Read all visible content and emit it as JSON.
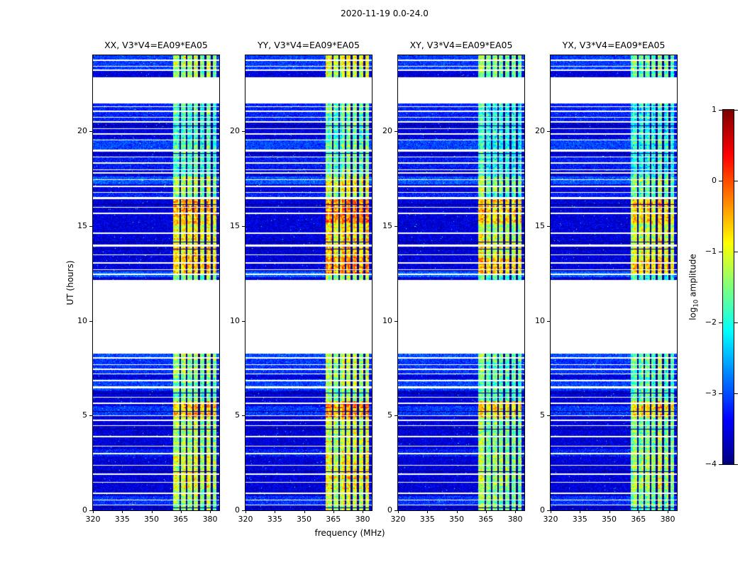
{
  "figure": {
    "title": "2020-11-19 0.0-24.0",
    "xlabel": "frequency (MHz)",
    "ylabel": "UT (hours)"
  },
  "chart_data": {
    "type": "heatmap",
    "title": "2020-11-19 0.0-24.0",
    "xlabel": "frequency (MHz)",
    "ylabel": "UT (hours)",
    "x_range_mhz": [
      320,
      384.7
    ],
    "y_range_hours": [
      0,
      24
    ],
    "x_ticks": [
      320,
      335,
      350,
      365,
      380
    ],
    "y_ticks": [
      0,
      5,
      10,
      15,
      20
    ],
    "panels": [
      {
        "title": "XX, V3*V4=EA09*EA05",
        "seed": 101,
        "level_offset": 0.05
      },
      {
        "title": "YY, V3*V4=EA09*EA05",
        "seed": 202,
        "level_offset": 0.18
      },
      {
        "title": "XY, V3*V4=EA09*EA05",
        "seed": 303,
        "level_offset": -0.15
      },
      {
        "title": "YX, V3*V4=EA09*EA05",
        "seed": 404,
        "level_offset": -0.05
      }
    ],
    "colorbar": {
      "label_prefix": "log",
      "label_sub": "10",
      "label_suffix": " amplitude",
      "ticks": [
        "1",
        "0",
        "−1",
        "−2",
        "−3",
        "−4"
      ],
      "tick_values": [
        1,
        0,
        -1,
        -2,
        -3,
        -4
      ],
      "vmin": -4,
      "vmax": 1,
      "colormap": "jet"
    },
    "features": {
      "background_level": -3.55,
      "band_mhz": [
        361.2,
        383.2
      ],
      "band_level": -1.55,
      "blank_ut": [
        [
          8.25,
          12.15
        ],
        [
          21.45,
          22.85
        ]
      ],
      "flagged_channels_mhz": [
        364.8,
        368.0,
        371.2,
        374.4,
        377.6,
        380.8
      ],
      "white_lines": [
        [
          23.75,
          2
        ],
        [
          23.45,
          1
        ],
        [
          23.22,
          2
        ],
        [
          21.3,
          1
        ],
        [
          21.05,
          2
        ],
        [
          20.75,
          1
        ],
        [
          20.5,
          2
        ],
        [
          20.15,
          1
        ],
        [
          19.85,
          2
        ],
        [
          19.55,
          1
        ],
        [
          19.0,
          3
        ],
        [
          18.65,
          1
        ],
        [
          18.3,
          2
        ],
        [
          18.0,
          1
        ],
        [
          17.78,
          2
        ],
        [
          17.45,
          1
        ],
        [
          17.1,
          2
        ],
        [
          16.78,
          1
        ],
        [
          16.5,
          3
        ],
        [
          16.0,
          1
        ],
        [
          15.68,
          2
        ],
        [
          14.6,
          2
        ],
        [
          14.0,
          3
        ],
        [
          13.5,
          1
        ],
        [
          13.05,
          2
        ],
        [
          12.7,
          1
        ],
        [
          12.45,
          2
        ],
        [
          8.05,
          2
        ],
        [
          7.7,
          1
        ],
        [
          7.45,
          2
        ],
        [
          7.2,
          1
        ],
        [
          6.85,
          2
        ],
        [
          6.5,
          3
        ],
        [
          6.0,
          1
        ],
        [
          5.65,
          2
        ],
        [
          5.02,
          1
        ],
        [
          4.75,
          2
        ],
        [
          4.5,
          1
        ],
        [
          3.9,
          2
        ],
        [
          3.4,
          1
        ],
        [
          3.0,
          2
        ],
        [
          2.4,
          1
        ],
        [
          1.9,
          2
        ],
        [
          1.5,
          1
        ],
        [
          0.9,
          2
        ],
        [
          0.55,
          1
        ],
        [
          0.3,
          1
        ]
      ],
      "dark_lines_ut": [
        20.3,
        18.85,
        16.15,
        14.15,
        13.8,
        6.2,
        5.25,
        4.3,
        2.05,
        0.15
      ],
      "bg_rows": [
        [
          23.2,
          24.0,
          -3.1
        ],
        [
          20.5,
          21.45,
          -3.25
        ],
        [
          19.0,
          19.6,
          -3.05
        ],
        [
          17.9,
          18.7,
          -3.3
        ],
        [
          17.2,
          17.6,
          -2.95
        ],
        [
          16.4,
          16.8,
          -3.25
        ],
        [
          12.3,
          12.6,
          -2.9
        ],
        [
          7.95,
          8.25,
          -3.0
        ],
        [
          7.15,
          7.95,
          -3.15
        ],
        [
          6.3,
          6.9,
          -3.05
        ],
        [
          5.0,
          5.5,
          -3.1
        ],
        [
          2.85,
          3.2,
          -3.25
        ],
        [
          0.3,
          0.75,
          -3.15
        ]
      ],
      "band_rows": [
        [
          23.2,
          24.0,
          -1.35
        ],
        [
          17.6,
          21.45,
          -1.85
        ],
        [
          16.8,
          17.6,
          -1.25
        ],
        [
          16.45,
          16.8,
          -1.6
        ],
        [
          15.1,
          16.45,
          -0.55
        ],
        [
          14.3,
          15.1,
          -1.05
        ],
        [
          13.35,
          14.3,
          -0.85
        ],
        [
          12.4,
          13.35,
          -0.6
        ],
        [
          7.0,
          8.25,
          -1.45
        ],
        [
          5.75,
          7.0,
          -1.6
        ],
        [
          4.9,
          5.75,
          -0.6
        ],
        [
          3.1,
          4.9,
          -1.35
        ],
        [
          1.1,
          3.1,
          -1.15
        ],
        [
          0.0,
          1.1,
          -1.4
        ]
      ]
    }
  }
}
